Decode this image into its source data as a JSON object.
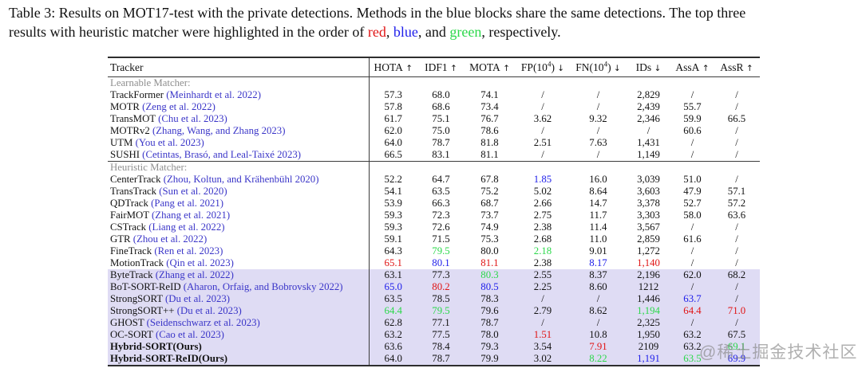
{
  "caption": {
    "line1": "Table 3: Results on MOT17-test with the private detections. Methods in the blue blocks share the same detections. The top three",
    "line2_prefix": "results with heuristic matcher were highlighted in the order of ",
    "red_word": "red",
    "sep1": ", ",
    "blue_word": "blue",
    "sep2": ", and ",
    "green_word": "green",
    "suffix": ", respectively."
  },
  "colors": {
    "red": "#e01414",
    "blue": "#1d1dea",
    "green": "#2bd84a",
    "citation": "#3a35c8",
    "highlight_bg": "#dfdcf4",
    "section_label": "#8e8e8e"
  },
  "table": {
    "columns": [
      {
        "pre": "Tracker",
        "sup": "",
        "post": "",
        "arrow": ""
      },
      {
        "pre": "HOTA",
        "sup": "",
        "post": "",
        "arrow": "↑"
      },
      {
        "pre": "IDF1",
        "sup": "",
        "post": "",
        "arrow": "↑"
      },
      {
        "pre": "MOTA",
        "sup": "",
        "post": "",
        "arrow": "↑"
      },
      {
        "pre": "FP(10",
        "sup": "4",
        "post": ")",
        "arrow": "↓"
      },
      {
        "pre": "FN(10",
        "sup": "4",
        "post": ")",
        "arrow": "↓"
      },
      {
        "pre": "IDs",
        "sup": "",
        "post": "",
        "arrow": "↓"
      },
      {
        "pre": "AssA",
        "sup": "",
        "post": "",
        "arrow": "↑"
      },
      {
        "pre": "AssR",
        "sup": "",
        "post": "",
        "arrow": "↑"
      }
    ],
    "sections": [
      {
        "label": "Learnable Matcher:",
        "rows": [
          {
            "name": "TrackFormer",
            "cite": "(Meinhardt et al. 2022)",
            "values": [
              "57.3",
              "68.0",
              "74.1",
              "/",
              "/",
              "2,829",
              "/",
              "/"
            ]
          },
          {
            "name": "MOTR",
            "cite": "(Zeng et al. 2022)",
            "values": [
              "57.8",
              "68.6",
              "73.4",
              "/",
              "/",
              "2,439",
              "55.7",
              "/"
            ]
          },
          {
            "name": "TransMOT",
            "cite": "(Chu et al. 2023)",
            "values": [
              "61.7",
              "75.1",
              "76.7",
              "3.62",
              "9.32",
              "2,346",
              "59.9",
              "66.5"
            ]
          },
          {
            "name": "MOTRv2",
            "cite": "(Zhang, Wang, and Zhang 2023)",
            "values": [
              "62.0",
              "75.0",
              "78.6",
              "/",
              "/",
              "/",
              "60.6",
              "/"
            ]
          },
          {
            "name": "UTM",
            "cite": "(You et al. 2023)",
            "values": [
              "64.0",
              "78.7",
              "81.8",
              "2.51",
              "7.63",
              "1,431",
              "/",
              "/"
            ]
          },
          {
            "name": "SUSHI",
            "cite": "(Cetintas, Brasó, and Leal-Taixé 2023)",
            "values": [
              "66.5",
              "83.1",
              "81.1",
              "/",
              "/",
              "1,149",
              "/",
              "/"
            ]
          }
        ]
      },
      {
        "label": "Heuristic Matcher:",
        "rows": [
          {
            "name": "CenterTrack",
            "cite": "(Zhou, Koltun, and Krähenbühl 2020)",
            "values": [
              "52.2",
              "64.7",
              "67.8",
              "1.85",
              "16.0",
              "3,039",
              "51.0",
              "/"
            ],
            "vc": {
              "3": "blue"
            }
          },
          {
            "name": "TransTrack",
            "cite": "(Sun et al. 2020)",
            "values": [
              "54.1",
              "63.5",
              "75.2",
              "5.02",
              "8.64",
              "3,603",
              "47.9",
              "57.1"
            ]
          },
          {
            "name": "QDTrack",
            "cite": "(Pang et al. 2021)",
            "values": [
              "53.9",
              "66.3",
              "68.7",
              "2.66",
              "14.7",
              "3,378",
              "52.7",
              "57.2"
            ]
          },
          {
            "name": "FairMOT",
            "cite": "(Zhang et al. 2021)",
            "values": [
              "59.3",
              "72.3",
              "73.7",
              "2.75",
              "11.7",
              "3,303",
              "58.0",
              "63.6"
            ]
          },
          {
            "name": "CSTrack",
            "cite": "(Liang et al. 2022)",
            "values": [
              "59.3",
              "72.6",
              "74.9",
              "2.38",
              "11.4",
              "3,567",
              "/",
              "/"
            ]
          },
          {
            "name": "GTR",
            "cite": "(Zhou et al. 2022)",
            "values": [
              "59.1",
              "71.5",
              "75.3",
              "2.68",
              "11.0",
              "2,859",
              "61.6",
              "/"
            ]
          },
          {
            "name": "FineTrack",
            "cite": "(Ren et al. 2023)",
            "values": [
              "64.3",
              "79.5",
              "80.0",
              "2.18",
              "9.01",
              "1,272",
              "/",
              "/"
            ],
            "vc": {
              "1": "green",
              "3": "green"
            }
          },
          {
            "name": "MotionTrack",
            "cite": "(Qin et al. 2023)",
            "values": [
              "65.1",
              "80.1",
              "81.1",
              "2.38",
              "8.17",
              "1,140",
              "/",
              "/"
            ],
            "vc": {
              "0": "red",
              "1": "blue",
              "2": "red",
              "4": "blue",
              "5": "red"
            }
          },
          {
            "name": "ByteTrack",
            "cite": "(Zhang et al. 2022)",
            "highlight": true,
            "values": [
              "63.1",
              "77.3",
              "80.3",
              "2.55",
              "8.37",
              "2,196",
              "62.0",
              "68.2"
            ],
            "vc": {
              "2": "green"
            }
          },
          {
            "name": "BoT-SORT-ReID",
            "cite": "(Aharon, Orfaig, and Bobrovsky 2022)",
            "highlight": true,
            "values": [
              "65.0",
              "80.2",
              "80.5",
              "2.25",
              "8.60",
              "1212",
              "/",
              "/"
            ],
            "vc": {
              "0": "blue",
              "1": "red",
              "2": "blue"
            }
          },
          {
            "name": "StrongSORT",
            "cite": "(Du et al. 2023)",
            "highlight": true,
            "values": [
              "63.5",
              "78.5",
              "78.3",
              "/",
              "/",
              "1,446",
              "63.7",
              "/"
            ],
            "vc": {
              "6": "blue"
            }
          },
          {
            "name": "StrongSORT++",
            "cite": "(Du et al. 2023)",
            "highlight": true,
            "values": [
              "64.4",
              "79.5",
              "79.6",
              "2.79",
              "8.62",
              "1,194",
              "64.4",
              "71.0"
            ],
            "vc": {
              "0": "green",
              "1": "green",
              "5": "green",
              "6": "red",
              "7": "red"
            }
          },
          {
            "name": "GHOST",
            "cite": "(Seidenschwarz et al. 2023)",
            "highlight": true,
            "values": [
              "62.8",
              "77.1",
              "78.7",
              "/",
              "/",
              "2,325",
              "/",
              "/"
            ]
          },
          {
            "name": "OC-SORT",
            "cite": "(Cao et al. 2023)",
            "highlight": true,
            "values": [
              "63.2",
              "77.5",
              "78.0",
              "1.51",
              "10.8",
              "1,950",
              "63.2",
              "67.5"
            ],
            "vc": {
              "3": "red"
            }
          },
          {
            "name": "Hybrid-SORT(Ours)",
            "cite": "",
            "bold": true,
            "highlight": true,
            "values": [
              "63.6",
              "78.4",
              "79.3",
              "3.54",
              "7.91",
              "2109",
              "63.2",
              "69.1"
            ],
            "vc": {
              "4": "red",
              "7": "green"
            }
          },
          {
            "name": "Hybrid-SORT-ReID(Ours)",
            "cite": "",
            "bold": true,
            "highlight": true,
            "values": [
              "64.0",
              "78.7",
              "79.9",
              "3.02",
              "8.22",
              "1,191",
              "63.5",
              "69.9"
            ],
            "vc": {
              "4": "green",
              "5": "blue",
              "6": "green",
              "7": "blue"
            }
          }
        ]
      }
    ]
  },
  "watermark": {
    "text": "@稀土掘金技术社区"
  }
}
